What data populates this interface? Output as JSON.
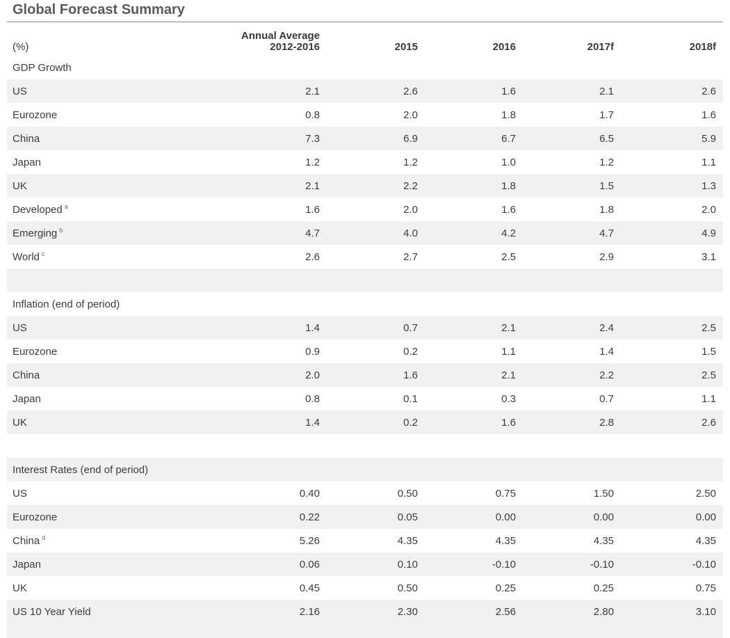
{
  "title": "Global Forecast Summary",
  "header": {
    "unit": "(%)",
    "avg_line1": "Annual Average",
    "avg_line2": "2012-2016",
    "years": [
      "2015",
      "2016",
      "2017f",
      "2018f"
    ]
  },
  "rows": [
    {
      "type": "section",
      "label": "GDP Growth"
    },
    {
      "type": "data",
      "label": "US",
      "values": [
        "2.1",
        "2.6",
        "1.6",
        "2.1",
        "2.6"
      ]
    },
    {
      "type": "data",
      "label": "Eurozone",
      "values": [
        "0.8",
        "2.0",
        "1.8",
        "1.7",
        "1.6"
      ]
    },
    {
      "type": "data",
      "label": "China",
      "values": [
        "7.3",
        "6.9",
        "6.7",
        "6.5",
        "5.9"
      ]
    },
    {
      "type": "data",
      "label": "Japan",
      "values": [
        "1.2",
        "1.2",
        "1.0",
        "1.2",
        "1.1"
      ]
    },
    {
      "type": "data",
      "label": "UK",
      "values": [
        "2.1",
        "2.2",
        "1.8",
        "1.5",
        "1.3"
      ]
    },
    {
      "type": "data",
      "label": "Developed",
      "note": "a",
      "values": [
        "1.6",
        "2.0",
        "1.6",
        "1.8",
        "2.0"
      ]
    },
    {
      "type": "data",
      "label": "Emerging",
      "note": "b",
      "values": [
        "4.7",
        "4.0",
        "4.2",
        "4.7",
        "4.9"
      ]
    },
    {
      "type": "data",
      "label": "World",
      "note": "c",
      "values": [
        "2.6",
        "2.7",
        "2.5",
        "2.9",
        "3.1"
      ]
    },
    {
      "type": "spacer"
    },
    {
      "type": "section",
      "label": "Inflation (end of period)"
    },
    {
      "type": "data",
      "label": "US",
      "values": [
        "1.4",
        "0.7",
        "2.1",
        "2.4",
        "2.5"
      ]
    },
    {
      "type": "data",
      "label": "Eurozone",
      "values": [
        "0.9",
        "0.2",
        "1.1",
        "1.4",
        "1.5"
      ]
    },
    {
      "type": "data",
      "label": "China",
      "values": [
        "2.0",
        "1.6",
        "2.1",
        "2.2",
        "2.5"
      ]
    },
    {
      "type": "data",
      "label": "Japan",
      "values": [
        "0.8",
        "0.1",
        "0.3",
        "0.7",
        "1.1"
      ]
    },
    {
      "type": "data",
      "label": "UK",
      "values": [
        "1.4",
        "0.2",
        "1.6",
        "2.8",
        "2.6"
      ]
    },
    {
      "type": "spacer"
    },
    {
      "type": "section",
      "label": "Interest Rates (end of period)"
    },
    {
      "type": "data",
      "label": "US",
      "values": [
        "0.40",
        "0.50",
        "0.75",
        "1.50",
        "2.50"
      ]
    },
    {
      "type": "data",
      "label": "Eurozone",
      "values": [
        "0.22",
        "0.05",
        "0.00",
        "0.00",
        "0.00"
      ]
    },
    {
      "type": "data",
      "label": "China",
      "note": "d",
      "values": [
        "5.26",
        "4.35",
        "4.35",
        "4.35",
        "4.35"
      ]
    },
    {
      "type": "data",
      "label": "Japan",
      "values": [
        "0.06",
        "0.10",
        "-0.10",
        "-0.10",
        "-0.10"
      ]
    },
    {
      "type": "data",
      "label": "UK",
      "values": [
        "0.45",
        "0.50",
        "0.25",
        "0.25",
        "0.75"
      ]
    },
    {
      "type": "data",
      "label": "US 10 Year Yield",
      "values": [
        "2.16",
        "2.30",
        "2.56",
        "2.80",
        "3.10"
      ]
    }
  ]
}
